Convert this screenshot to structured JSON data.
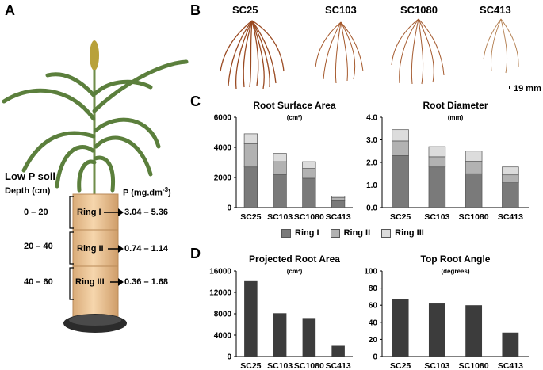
{
  "panels": {
    "a": "A",
    "b": "B",
    "c": "C",
    "d": "D"
  },
  "panel_a": {
    "soil_title": "Low P soil",
    "depth_header": "Depth (cm)",
    "p_header": "P (mg.dm",
    "p_header_sup": "-3",
    "p_header_end": ")",
    "rings": [
      {
        "depth": "0 – 20",
        "name": "Ring I",
        "p": "3.04 – 5.36"
      },
      {
        "depth": "20 – 40",
        "name": "Ring II",
        "p": "0.74 – 1.14"
      },
      {
        "depth": "40 – 60",
        "name": "Ring III",
        "p": "0.36 – 1.68"
      }
    ]
  },
  "panel_b": {
    "genotypes": [
      "SC25",
      "SC103",
      "SC1080",
      "SC413"
    ],
    "scale_bar": "19 mm"
  },
  "legend": [
    "Ring I",
    "Ring II",
    "Ring III"
  ],
  "colors": {
    "ring1": "#7a7a7a",
    "ring2": "#b2b2b2",
    "ring3": "#dcdcdc",
    "single": "#3c3c3c",
    "root": "#9a4a22",
    "tube": "#efc79a",
    "leaf": "#5b7f3c"
  },
  "chart_data": [
    {
      "type": "bar",
      "stacked": true,
      "title": "Root Surface Area",
      "units": "(cm²)",
      "categories": [
        "SC25",
        "SC103",
        "SC1080",
        "SC413"
      ],
      "ylim": [
        0,
        6000
      ],
      "yticks": [
        "0",
        "2000",
        "4000",
        "6000"
      ],
      "series": [
        {
          "name": "Ring I",
          "values": [
            2700,
            2200,
            1950,
            450
          ]
        },
        {
          "name": "Ring II",
          "values": [
            1550,
            850,
            650,
            200
          ]
        },
        {
          "name": "Ring III",
          "values": [
            650,
            550,
            450,
            100
          ]
        }
      ]
    },
    {
      "type": "bar",
      "stacked": true,
      "title": "Root Diameter",
      "units": "(mm)",
      "categories": [
        "SC25",
        "SC103",
        "SC1080",
        "SC413"
      ],
      "ylim": [
        0,
        4.0
      ],
      "yticks": [
        "0.0",
        "1.0",
        "2.0",
        "3.0",
        "4.0"
      ],
      "series": [
        {
          "name": "Ring I",
          "values": [
            2.3,
            1.8,
            1.5,
            1.1
          ]
        },
        {
          "name": "Ring II",
          "values": [
            0.65,
            0.45,
            0.55,
            0.35
          ]
        },
        {
          "name": "Ring III",
          "values": [
            0.5,
            0.45,
            0.45,
            0.35
          ]
        }
      ]
    },
    {
      "type": "bar",
      "title": "Projected Root Area",
      "units": "(cm²)",
      "categories": [
        "SC25",
        "SC103",
        "SC1080",
        "SC413"
      ],
      "ylim": [
        0,
        16000
      ],
      "yticks": [
        "0",
        "4000",
        "8000",
        "12000",
        "16000"
      ],
      "values": [
        14100,
        8100,
        7200,
        2000
      ]
    },
    {
      "type": "bar",
      "title": "Top Root Angle",
      "units": "(degrees)",
      "categories": [
        "SC25",
        "SC103",
        "SC1080",
        "SC413"
      ],
      "ylim": [
        0,
        100
      ],
      "yticks": [
        "0",
        "20",
        "40",
        "60",
        "80",
        "100"
      ],
      "values": [
        67,
        62,
        60,
        28
      ]
    }
  ]
}
